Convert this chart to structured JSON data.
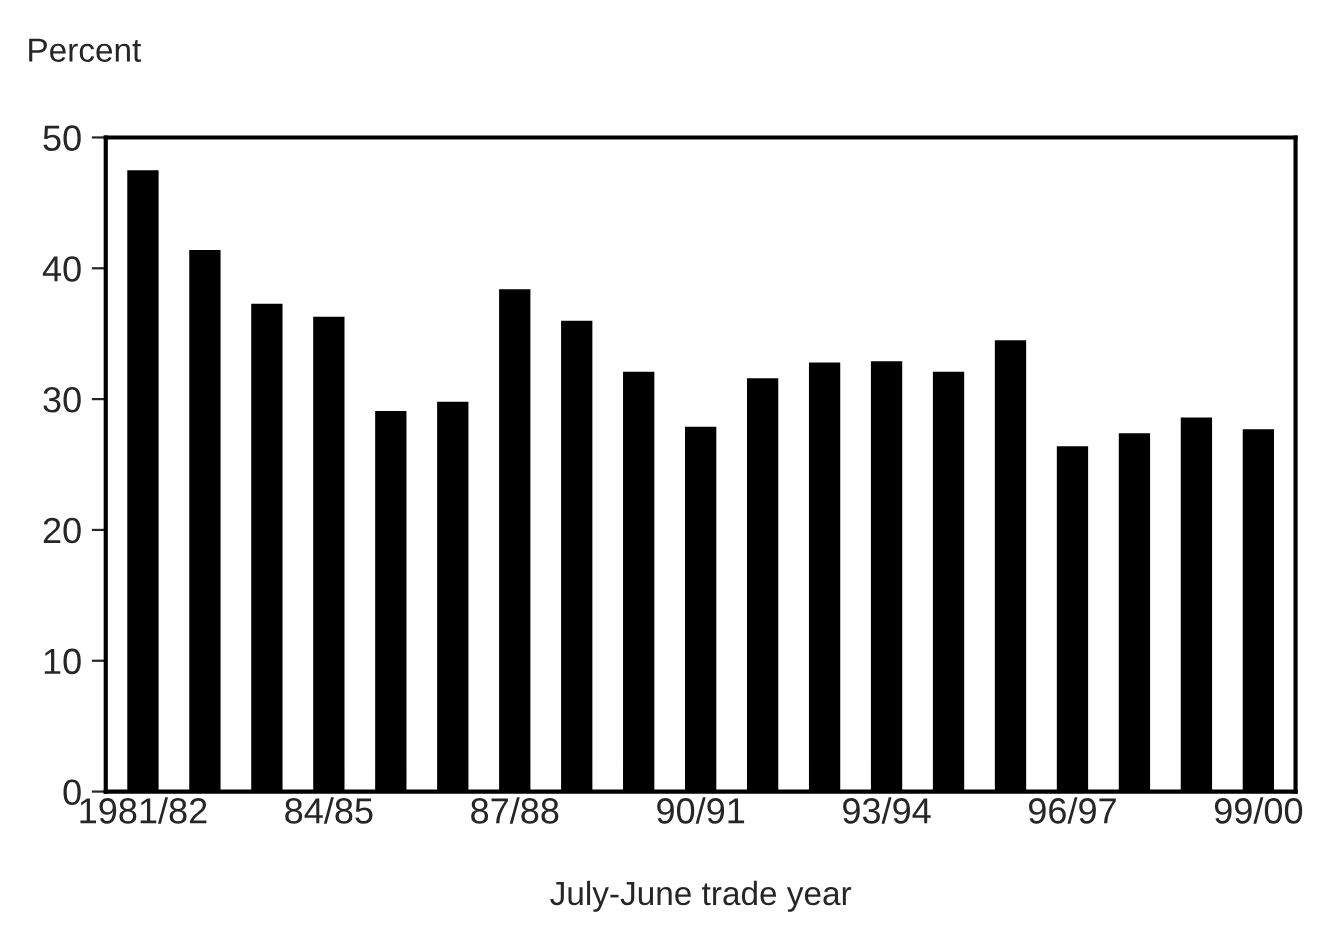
{
  "chart_data": {
    "type": "bar",
    "ylabel": "Percent",
    "xlabel": "July-June trade year",
    "categories": [
      "1981/82",
      null,
      null,
      "84/85",
      null,
      null,
      "87/88",
      null,
      null,
      "90/91",
      null,
      null,
      "93/94",
      null,
      null,
      "96/97",
      null,
      null,
      "99/00"
    ],
    "values": [
      47.6,
      41.5,
      37.4,
      36.4,
      29.2,
      29.9,
      38.5,
      36.1,
      32.2,
      28.0,
      31.7,
      32.9,
      33.0,
      32.2,
      34.6,
      26.5,
      27.5,
      28.7,
      27.8
    ],
    "color": "#000000",
    "ylim": [
      0,
      50
    ],
    "yticks": [
      0,
      10,
      20,
      30,
      40,
      50
    ],
    "grid": false,
    "legend": false
  }
}
